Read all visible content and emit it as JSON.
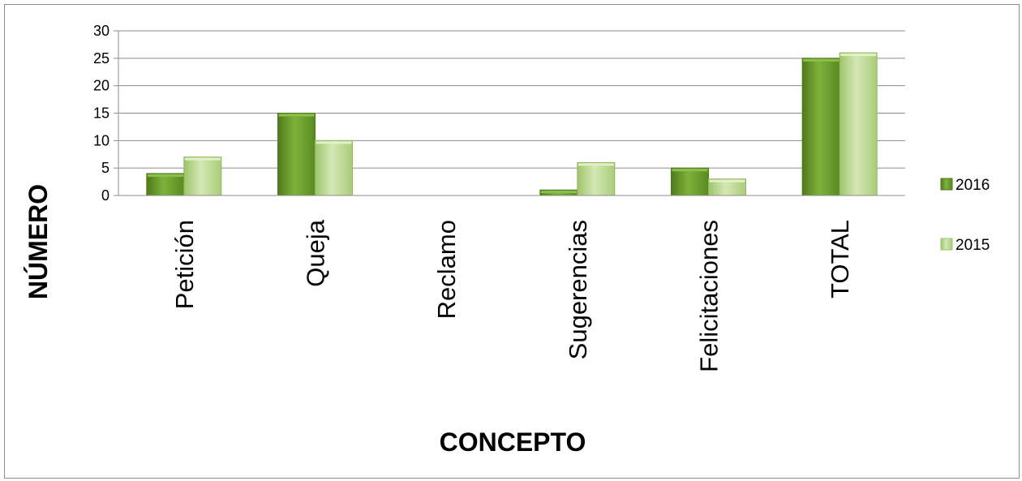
{
  "chart_data": {
    "type": "bar",
    "title": "",
    "xlabel": "CONCEPTO",
    "ylabel": "NÚMERO",
    "categories": [
      "Petición",
      "Queja",
      "Reclamo",
      "Sugerencias",
      "Felicitaciones",
      "TOTAL"
    ],
    "series": [
      {
        "name": "2016",
        "values": [
          4,
          15,
          0,
          1,
          5,
          25
        ],
        "color": "#6a9a2a"
      },
      {
        "name": "2015",
        "values": [
          7,
          10,
          0,
          6,
          3,
          26
        ],
        "color": "#b8d78c"
      }
    ],
    "ylim": [
      0,
      30
    ],
    "yticks": [
      0,
      5,
      10,
      15,
      20,
      25,
      30
    ],
    "grid": true,
    "legend_position": "right"
  }
}
